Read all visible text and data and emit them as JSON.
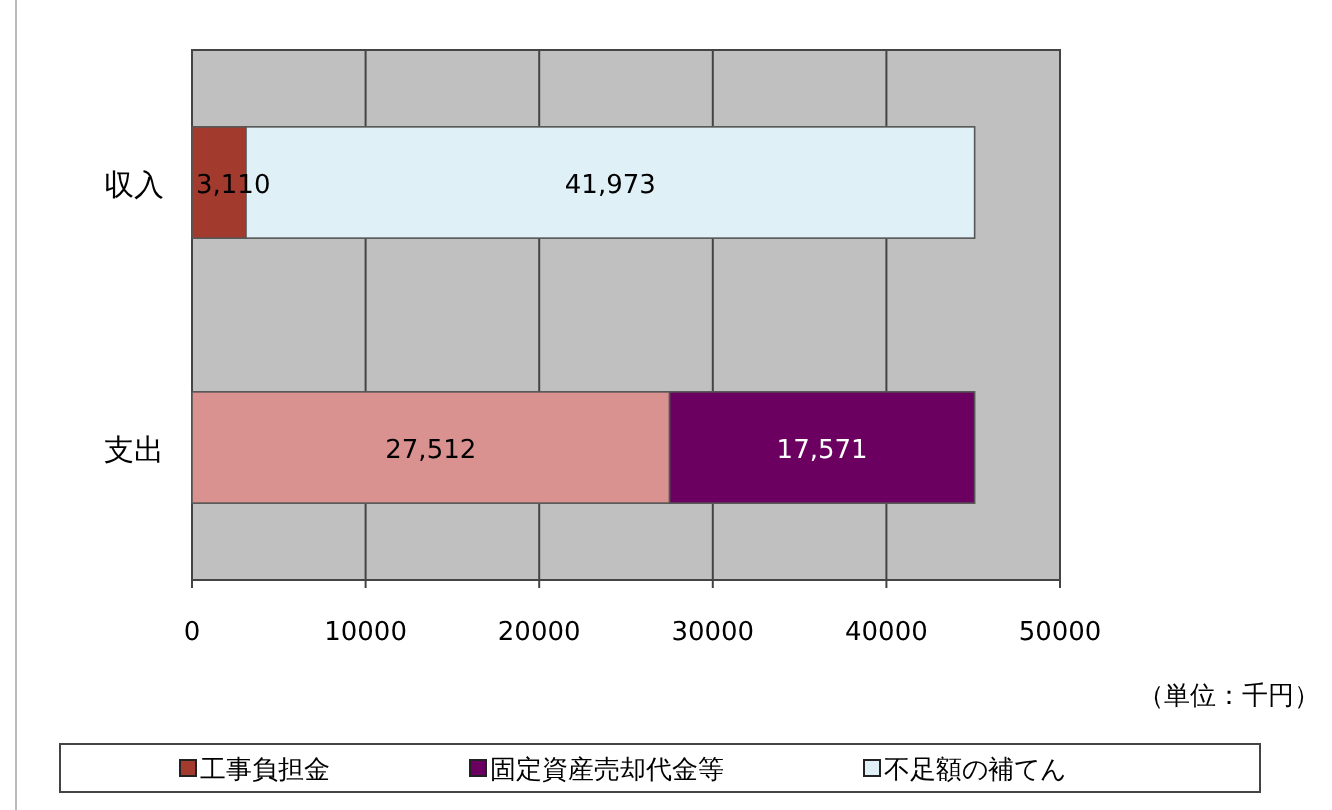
{
  "chart_data": {
    "type": "bar",
    "orientation": "horizontal",
    "stacked": true,
    "categories": [
      "収入",
      "支出"
    ],
    "series": [
      {
        "name": "工事負担金",
        "color": "#a33a2e",
        "values": [
          3110,
          null
        ],
        "value_labels": [
          "3,110",
          null
        ]
      },
      {
        "color": "#d99290",
        "values": [
          null,
          27512
        ],
        "value_labels": [
          null,
          "27,512"
        ]
      },
      {
        "name": "固定資産売却代金等",
        "color": "#6b0060",
        "values": [
          null,
          17571
        ],
        "value_labels": [
          null,
          "17,571"
        ]
      },
      {
        "name": "不足額の補てん",
        "color": "#dff0f7",
        "values": [
          41973,
          null
        ],
        "value_labels": [
          "41,973",
          null
        ]
      }
    ],
    "xlim": [
      0,
      50000
    ],
    "xticks": [
      0,
      10000,
      20000,
      30000,
      40000,
      50000
    ],
    "grid": "x",
    "legend": "bottom",
    "annotations": [
      "（単位：千円）"
    ]
  }
}
